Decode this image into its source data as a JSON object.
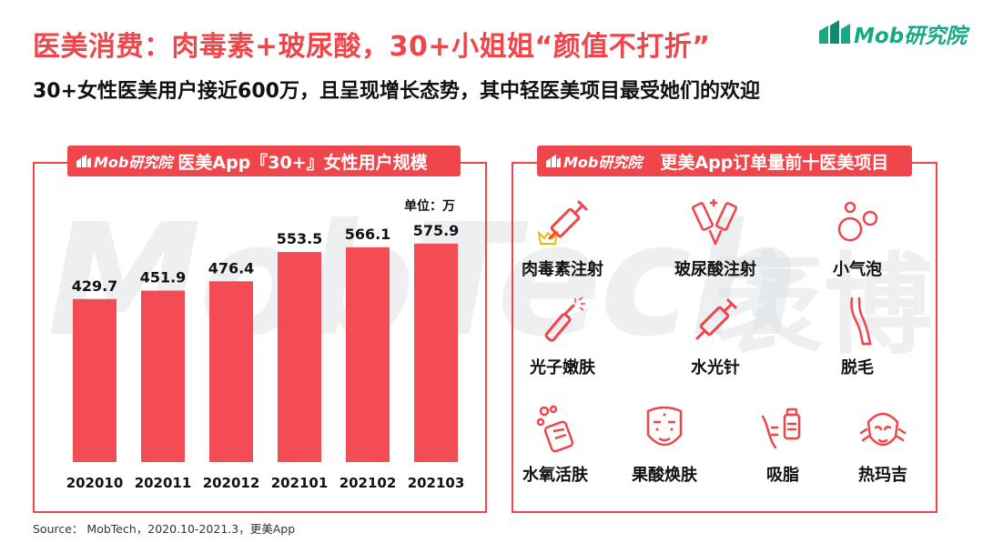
{
  "header": {
    "title": "医美消费：肉毒素+玻尿酸，30+小姐姐“颜值不打折”",
    "subtitle": "30+女性医美用户接近600万，且呈现增长态势，其中轻医美项目最受她们的欢迎",
    "brand": "Mob研究院"
  },
  "watermark": {
    "latin": "MobTech",
    "cn": "袤博"
  },
  "colors": {
    "accent": "#f0454b",
    "brand": "#17a984",
    "bar": "#f44c54"
  },
  "left_panel": {
    "logo": "Mob研究院",
    "title": "医美App『30+』女性用户规模",
    "unit": "单位：万"
  },
  "chart_data": {
    "type": "bar",
    "title": "医美App『30+』女性用户规模",
    "ylabel": "单位：万",
    "categories": [
      "202010",
      "202011",
      "202012",
      "202101",
      "202102",
      "202103"
    ],
    "values": [
      429.7,
      451.9,
      476.4,
      553.5,
      566.1,
      575.9
    ],
    "ylim": [
      0,
      700
    ],
    "grid": false
  },
  "right_panel": {
    "logo": "Mob研究院",
    "title": "更美App订单量前十医美项目",
    "items": [
      {
        "label": "肉毒素注射",
        "icon": "syringe-crown-icon"
      },
      {
        "label": "玻尿酸注射",
        "icon": "injection-ampoule-icon"
      },
      {
        "label": "小气泡",
        "icon": "bubbles-icon"
      },
      {
        "label": "光子嫩肤",
        "icon": "photon-wand-icon"
      },
      {
        "label": "水光针",
        "icon": "syringe-icon"
      },
      {
        "label": "脱毛",
        "icon": "leg-icon"
      },
      {
        "label": "水氧活肤",
        "icon": "oxygen-bottle-icon"
      },
      {
        "label": "果酸焕肤",
        "icon": "face-mask-icon"
      },
      {
        "label": "吸脂",
        "icon": "liposuction-icon"
      },
      {
        "label": "热玛吉",
        "icon": "face-treatment-icon"
      }
    ]
  },
  "footer": {
    "source": "Source： MobTech，2020.10-2021.3，更美App"
  }
}
